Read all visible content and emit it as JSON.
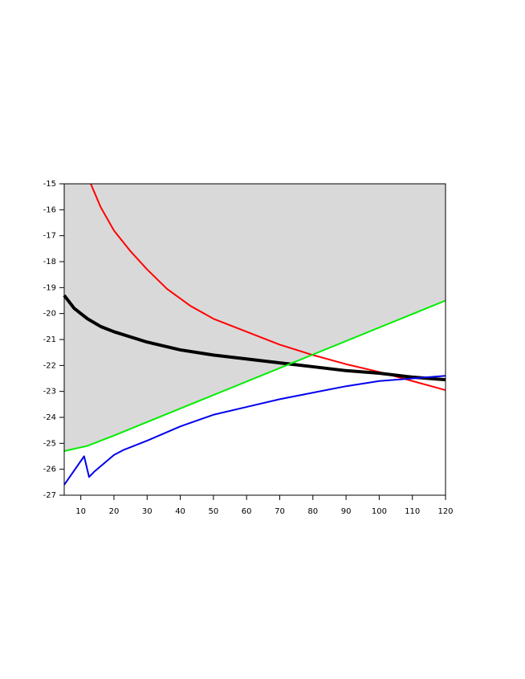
{
  "chart_data": {
    "type": "line",
    "xlim": [
      5,
      120
    ],
    "xticks": [
      10,
      20,
      30,
      40,
      50,
      60,
      70,
      80,
      90,
      100,
      110,
      120
    ],
    "ylim": [
      -27,
      -15
    ],
    "yticks": [
      -27,
      -26,
      -25,
      -24,
      -23,
      -22,
      -21,
      -20,
      -19,
      -18,
      -17,
      -16,
      -15
    ],
    "shade_above_series": 2,
    "shade_color": "#d9d9d9",
    "series": [
      {
        "color": "#ff0000",
        "width": 2,
        "x": [
          13,
          16,
          20,
          25,
          30,
          36,
          43,
          50,
          60,
          70,
          80,
          90,
          100,
          110,
          120
        ],
        "values": [
          -15,
          -15.9,
          -16.8,
          -17.6,
          -18.3,
          -19.05,
          -19.7,
          -20.2,
          -20.7,
          -21.2,
          -21.6,
          -21.95,
          -22.25,
          -22.6,
          -22.95
        ]
      },
      {
        "color": "#000000",
        "width": 4,
        "x": [
          5,
          8,
          12,
          16,
          20,
          30,
          40,
          50,
          60,
          70,
          80,
          90,
          100,
          110,
          120
        ],
        "values": [
          -19.3,
          -19.8,
          -20.2,
          -20.5,
          -20.7,
          -21.1,
          -21.4,
          -21.6,
          -21.75,
          -21.9,
          -22.05,
          -22.2,
          -22.3,
          -22.45,
          -22.55
        ]
      },
      {
        "color": "#00ee00",
        "width": 2,
        "x": [
          5,
          12,
          20,
          120
        ],
        "values": [
          -25.3,
          -25.1,
          -24.7,
          -19.5
        ]
      },
      {
        "color": "#0000ee",
        "width": 2,
        "x": [
          5,
          11,
          12.5,
          14,
          20,
          23,
          30,
          40,
          50,
          60,
          70,
          80,
          90,
          100,
          110,
          120
        ],
        "values": [
          -26.6,
          -25.5,
          -26.3,
          -26.1,
          -25.45,
          -25.25,
          -24.9,
          -24.35,
          -23.9,
          -23.6,
          -23.3,
          -23.05,
          -22.8,
          -22.6,
          -22.5,
          -22.4
        ]
      }
    ]
  }
}
